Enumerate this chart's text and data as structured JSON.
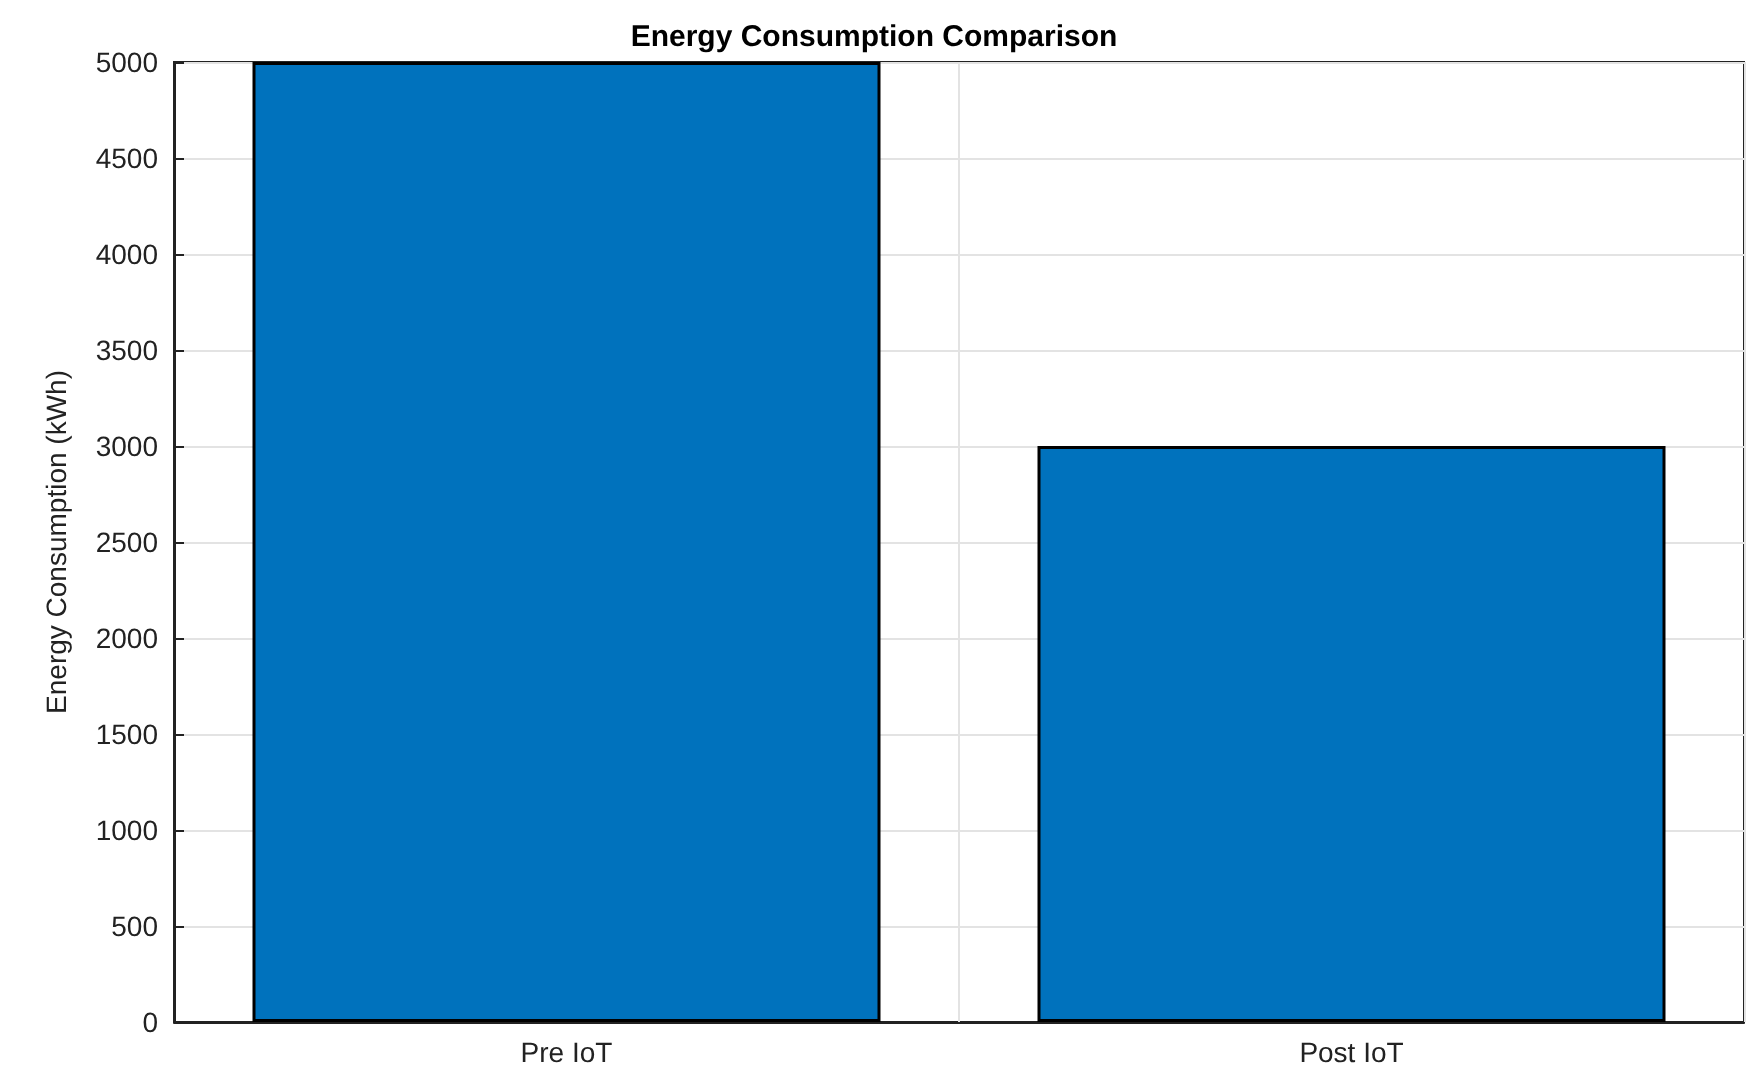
{
  "chart_data": {
    "type": "bar",
    "title": "Energy Consumption Comparison",
    "ylabel": "Energy Consumption (kWh)",
    "categories": [
      "Pre IoT",
      "Post IoT"
    ],
    "values": [
      5000,
      3000
    ],
    "color": "#0072bd",
    "ylim": [
      0,
      5000
    ],
    "yticks": [
      0,
      500,
      1000,
      1500,
      2000,
      2500,
      3000,
      3500,
      4000,
      4500,
      5000
    ],
    "grid": true
  }
}
